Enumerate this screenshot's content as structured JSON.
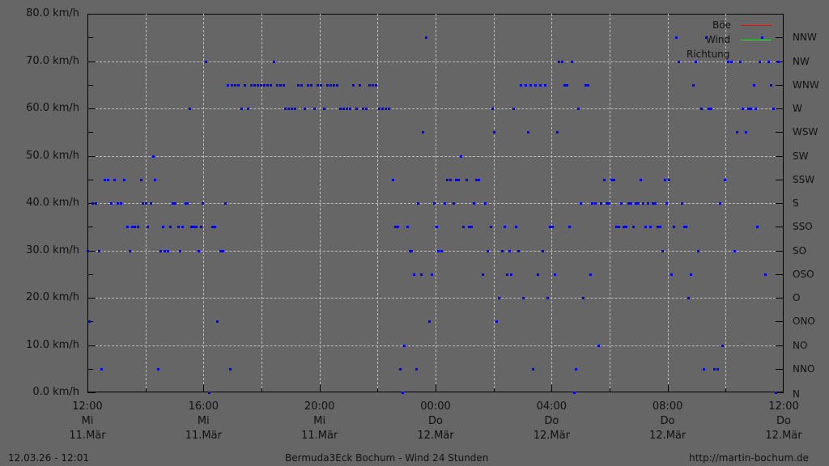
{
  "chart_data": {
    "type": "scatter",
    "title": "Bermuda3Eck Bochum - Wind 24 Stunden",
    "xlabel": "",
    "ylabel": "km/h",
    "ylim": [
      0,
      80
    ],
    "y_ticks": [
      "0.0 km/h",
      "10.0 km/h",
      "20.0 km/h",
      "30.0 km/h",
      "40.0 km/h",
      "50.0 km/h",
      "60.0 km/h",
      "70.0 km/h",
      "80.0 km/h"
    ],
    "y2_ticks": [
      "N",
      "NNO",
      "NO",
      "ONO",
      "O",
      "OSO",
      "SO",
      "SSO",
      "S",
      "SSW",
      "SW",
      "WSW",
      "W",
      "WNW",
      "NW",
      "NNW"
    ],
    "x_ticks": [
      {
        "time": "12:00",
        "day": "Mi",
        "date": "11.Mär"
      },
      {
        "time": "16:00",
        "day": "Mi",
        "date": "11.Mär"
      },
      {
        "time": "20:00",
        "day": "Mi",
        "date": "11.Mär"
      },
      {
        "time": "00:00",
        "day": "Do",
        "date": "12.Mär"
      },
      {
        "time": "04:00",
        "day": "Do",
        "date": "12.Mär"
      },
      {
        "time": "08:00",
        "day": "Do",
        "date": "12.Mär"
      },
      {
        "time": "12:00",
        "day": "Do",
        "date": "12.Mär"
      }
    ],
    "legend": [
      {
        "label": "Böe",
        "color": "#ff0000"
      },
      {
        "label": "Wind",
        "color": "#00ff00"
      },
      {
        "label": "Richtung",
        "color": "#0000ff"
      }
    ],
    "grid": true,
    "series": [
      {
        "name": "Böe",
        "values": []
      },
      {
        "name": "Wind",
        "values": []
      },
      {
        "name": "Richtung",
        "note": "points as [x_pixel, value on 0-80 scale where 5 units = one compass step]",
        "values": [
          [
            108,
            30
          ],
          [
            110,
            15
          ],
          [
            114,
            40
          ],
          [
            118,
            40
          ],
          [
            122,
            30
          ],
          [
            125,
            5
          ],
          [
            129,
            45
          ],
          [
            133,
            45
          ],
          [
            137,
            40
          ],
          [
            141,
            45
          ],
          [
            145,
            40
          ],
          [
            149,
            40
          ],
          [
            153,
            45
          ],
          [
            157,
            35
          ],
          [
            160,
            30
          ],
          [
            163,
            35
          ],
          [
            166,
            35
          ],
          [
            170,
            35
          ],
          [
            174,
            45
          ],
          [
            176,
            40
          ],
          [
            180,
            40
          ],
          [
            182,
            35
          ],
          [
            186,
            40
          ],
          [
            189,
            50
          ],
          [
            191,
            45
          ],
          [
            195,
            5
          ],
          [
            198,
            30
          ],
          [
            201,
            35
          ],
          [
            203,
            30
          ],
          [
            207,
            30
          ],
          [
            210,
            35
          ],
          [
            213,
            40
          ],
          [
            216,
            40
          ],
          [
            220,
            35
          ],
          [
            222,
            30
          ],
          [
            225,
            35
          ],
          [
            229,
            40
          ],
          [
            231,
            40
          ],
          [
            234,
            60
          ],
          [
            236,
            35
          ],
          [
            239,
            35
          ],
          [
            242,
            35
          ],
          [
            245,
            30
          ],
          [
            248,
            35
          ],
          [
            250,
            40
          ],
          [
            254,
            70
          ],
          [
            258,
            0
          ],
          [
            262,
            35
          ],
          [
            265,
            35
          ],
          [
            268,
            15
          ],
          [
            272,
            30
          ],
          [
            275,
            30
          ],
          [
            278,
            40
          ],
          [
            281,
            65
          ],
          [
            284,
            5
          ],
          [
            286,
            65
          ],
          [
            290,
            65
          ],
          [
            294,
            65
          ],
          [
            298,
            60
          ],
          [
            302,
            65
          ],
          [
            306,
            60
          ],
          [
            310,
            65
          ],
          [
            314,
            65
          ],
          [
            318,
            65
          ],
          [
            322,
            65
          ],
          [
            326,
            65
          ],
          [
            330,
            65
          ],
          [
            334,
            65
          ],
          [
            338,
            70
          ],
          [
            342,
            65
          ],
          [
            346,
            65
          ],
          [
            350,
            65
          ],
          [
            352,
            60
          ],
          [
            356,
            60
          ],
          [
            360,
            60
          ],
          [
            364,
            60
          ],
          [
            368,
            65
          ],
          [
            372,
            65
          ],
          [
            376,
            60
          ],
          [
            380,
            65
          ],
          [
            384,
            65
          ],
          [
            388,
            60
          ],
          [
            392,
            65
          ],
          [
            396,
            65
          ],
          [
            400,
            60
          ],
          [
            404,
            65
          ],
          [
            408,
            65
          ],
          [
            412,
            65
          ],
          [
            416,
            65
          ],
          [
            420,
            60
          ],
          [
            424,
            60
          ],
          [
            428,
            60
          ],
          [
            432,
            60
          ],
          [
            436,
            65
          ],
          [
            440,
            60
          ],
          [
            444,
            65
          ],
          [
            448,
            60
          ],
          [
            452,
            60
          ],
          [
            456,
            65
          ],
          [
            460,
            65
          ],
          [
            464,
            65
          ],
          [
            468,
            60
          ],
          [
            472,
            60
          ],
          [
            476,
            60
          ],
          [
            480,
            60
          ],
          [
            485,
            45
          ],
          [
            488,
            35
          ],
          [
            491,
            35
          ],
          [
            494,
            5
          ],
          [
            497,
            0
          ],
          [
            499,
            10
          ],
          [
            503,
            35
          ],
          [
            506,
            30
          ],
          [
            508,
            30
          ],
          [
            511,
            25
          ],
          [
            514,
            5
          ],
          [
            516,
            40
          ],
          [
            520,
            25
          ],
          [
            522,
            55
          ],
          [
            526,
            75
          ],
          [
            530,
            15
          ],
          [
            533,
            25
          ],
          [
            536,
            40
          ],
          [
            539,
            35
          ],
          [
            541,
            30
          ],
          [
            545,
            30
          ],
          [
            549,
            40
          ],
          [
            552,
            45
          ],
          [
            556,
            45
          ],
          [
            560,
            40
          ],
          [
            563,
            45
          ],
          [
            566,
            45
          ],
          [
            569,
            50
          ],
          [
            572,
            35
          ],
          [
            576,
            45
          ],
          [
            579,
            35
          ],
          [
            582,
            35
          ],
          [
            585,
            40
          ],
          [
            588,
            45
          ],
          [
            591,
            45
          ],
          [
            596,
            25
          ],
          [
            599,
            40
          ],
          [
            602,
            30
          ],
          [
            606,
            35
          ],
          [
            608,
            60
          ],
          [
            610,
            55
          ],
          [
            613,
            15
          ],
          [
            616,
            20
          ],
          [
            620,
            30
          ],
          [
            623,
            35
          ],
          [
            626,
            25
          ],
          [
            629,
            30
          ],
          [
            631,
            25
          ],
          [
            634,
            60
          ],
          [
            637,
            35
          ],
          [
            640,
            30
          ],
          [
            643,
            65
          ],
          [
            646,
            20
          ],
          [
            649,
            65
          ],
          [
            652,
            55
          ],
          [
            655,
            65
          ],
          [
            658,
            5
          ],
          [
            661,
            65
          ],
          [
            664,
            25
          ],
          [
            667,
            65
          ],
          [
            670,
            30
          ],
          [
            673,
            65
          ],
          [
            676,
            20
          ],
          [
            679,
            35
          ],
          [
            682,
            35
          ],
          [
            685,
            25
          ],
          [
            688,
            55
          ],
          [
            690,
            70
          ],
          [
            694,
            70
          ],
          [
            697,
            65
          ],
          [
            700,
            65
          ],
          [
            703,
            35
          ],
          [
            706,
            70
          ],
          [
            709,
            0
          ],
          [
            711,
            5
          ],
          [
            714,
            60
          ],
          [
            717,
            40
          ],
          [
            720,
            20
          ],
          [
            723,
            65
          ],
          [
            726,
            65
          ],
          [
            729,
            25
          ],
          [
            731,
            40
          ],
          [
            735,
            40
          ],
          [
            739,
            10
          ],
          [
            742,
            40
          ],
          [
            746,
            45
          ],
          [
            749,
            40
          ],
          [
            752,
            40
          ],
          [
            755,
            45
          ],
          [
            758,
            45
          ],
          [
            761,
            35
          ],
          [
            764,
            35
          ],
          [
            767,
            40
          ],
          [
            770,
            35
          ],
          [
            773,
            35
          ],
          [
            776,
            40
          ],
          [
            779,
            40
          ],
          [
            782,
            35
          ],
          [
            785,
            40
          ],
          [
            788,
            40
          ],
          [
            791,
            45
          ],
          [
            794,
            40
          ],
          [
            797,
            35
          ],
          [
            800,
            40
          ],
          [
            803,
            35
          ],
          [
            806,
            40
          ],
          [
            809,
            40
          ],
          [
            812,
            35
          ],
          [
            815,
            35
          ],
          [
            818,
            30
          ],
          [
            821,
            45
          ],
          [
            823,
            40
          ],
          [
            826,
            45
          ],
          [
            829,
            25
          ],
          [
            832,
            35
          ],
          [
            835,
            75
          ],
          [
            838,
            70
          ],
          [
            842,
            40
          ],
          [
            845,
            35
          ],
          [
            847,
            35
          ],
          [
            850,
            20
          ],
          [
            853,
            25
          ],
          [
            856,
            65
          ],
          [
            859,
            70
          ],
          [
            862,
            30
          ],
          [
            866,
            60
          ],
          [
            869,
            5
          ],
          [
            872,
            75
          ],
          [
            875,
            60
          ],
          [
            878,
            60
          ],
          [
            882,
            5
          ],
          [
            886,
            5
          ],
          [
            889,
            40
          ],
          [
            892,
            10
          ],
          [
            895,
            45
          ],
          [
            899,
            70
          ],
          [
            903,
            70
          ],
          [
            907,
            30
          ],
          [
            910,
            55
          ],
          [
            914,
            70
          ],
          [
            917,
            60
          ],
          [
            921,
            55
          ],
          [
            924,
            60
          ],
          [
            927,
            60
          ],
          [
            931,
            65
          ],
          [
            933,
            60
          ],
          [
            935,
            35
          ],
          [
            938,
            70
          ],
          [
            941,
            75
          ],
          [
            945,
            25
          ],
          [
            949,
            70
          ],
          [
            952,
            65
          ],
          [
            955,
            60
          ],
          [
            958,
            0
          ],
          [
            961,
            70
          ]
        ]
      }
    ]
  },
  "footer": {
    "timestamp": "12.03.26 - 12:01",
    "title": "Bermuda3Eck Bochum - Wind 24 Stunden",
    "url": "http://martin-bochum.de"
  }
}
